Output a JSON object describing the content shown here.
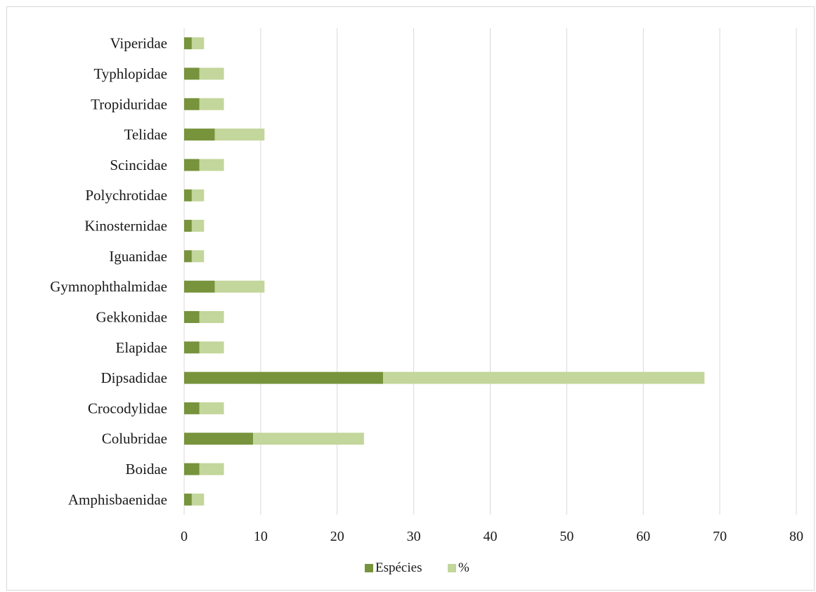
{
  "chart_data": {
    "type": "bar",
    "orientation": "horizontal",
    "stacked": true,
    "title": "",
    "xlabel": "",
    "ylabel": "",
    "xlim": [
      0,
      80
    ],
    "x_ticks": [
      0,
      10,
      20,
      30,
      40,
      50,
      60,
      70,
      80
    ],
    "grid": "vertical",
    "legend_position": "bottom",
    "categories": [
      "Viperidae",
      "Typhlopidae",
      "Tropiduridae",
      "Telidae",
      "Scincidae",
      "Polychrotidae",
      "Kinosternidae",
      "Iguanidae",
      "Gymnophthalmidae",
      "Gekkonidae",
      "Elapidae",
      "Dipsadidae",
      "Crocodylidae",
      "Colubridae",
      "Boidae",
      "Amphisbaenidae"
    ],
    "series": [
      {
        "name": "Espécies",
        "color": "#77933c",
        "values": [
          1,
          2,
          2,
          4,
          2,
          1,
          1,
          1,
          4,
          2,
          2,
          26,
          2,
          9,
          2,
          1
        ]
      },
      {
        "name": "%",
        "color": "#c3d69b",
        "values": [
          1.6,
          3.2,
          3.2,
          6.5,
          3.2,
          1.6,
          1.6,
          1.6,
          6.5,
          3.2,
          3.2,
          42,
          3.2,
          14.5,
          3.2,
          1.6
        ]
      }
    ]
  }
}
